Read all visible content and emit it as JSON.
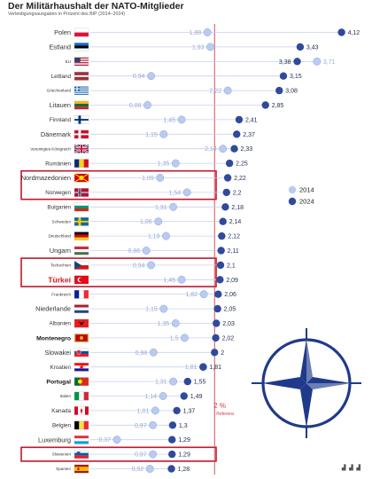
{
  "title": "Der Militärhaushalt der NATO-Mitglieder",
  "subtitle": "Verteidigungsausgaben in Prozent des BIP (2014–2024)",
  "footer_mark": "▟ ▟ ▟",
  "chart_data": {
    "type": "dot-plot",
    "title": "Der Militärhaushalt der NATO-Mitglieder",
    "subtitle": "Verteidigungsausgaben in Prozent des BIP (2014–2024)",
    "xlim": [
      0,
      4.2
    ],
    "reference": {
      "value": 2.0,
      "label": "2 %",
      "sublabel": "Referenz"
    },
    "legend": {
      "placement": "right",
      "entries": [
        {
          "name": "2014",
          "color": "#b9cbf0"
        },
        {
          "name": "2024",
          "color": "#2f4a9c"
        }
      ]
    },
    "highlight_groups": [
      [
        10,
        11
      ],
      [
        16,
        17
      ],
      [
        29,
        29
      ]
    ],
    "countries": [
      {
        "name": "Polen",
        "v2014": 1.88,
        "l2014": "1,88",
        "v2024": 4.12,
        "l2024": "4,12",
        "flag": "pl"
      },
      {
        "name": "Estland",
        "v2014": 1.93,
        "l2014": "1,93",
        "v2024": 3.43,
        "l2024": "3,43",
        "flag": "ee"
      },
      {
        "name": "EU",
        "v2014": 3.71,
        "l2014": "3,71",
        "v2024": 3.38,
        "l2024": "3,38",
        "flag": "us"
      },
      {
        "name": "Lettland",
        "v2014": 0.94,
        "l2014": "0,94",
        "v2024": 3.15,
        "l2024": "3,15",
        "flag": "lv"
      },
      {
        "name": "Griechenland",
        "v2014": 2.22,
        "l2014": "2,22",
        "v2024": 3.08,
        "l2024": "3,08",
        "flag": "gr"
      },
      {
        "name": "Litauen",
        "v2014": 0.88,
        "l2014": "0,88",
        "v2024": 2.85,
        "l2024": "2,85",
        "flag": "lt"
      },
      {
        "name": "Finnland",
        "v2014": 1.45,
        "l2014": "1,45",
        "v2024": 2.41,
        "l2024": "2,41",
        "flag": "fi"
      },
      {
        "name": "Dänemark",
        "v2014": 1.15,
        "l2014": "1,15",
        "v2024": 2.37,
        "l2024": "2,37",
        "flag": "dk"
      },
      {
        "name": "Vereinigtes Königreich",
        "v2014": 2.14,
        "l2014": "2,14",
        "v2024": 2.33,
        "l2024": "2,33",
        "flag": "gb"
      },
      {
        "name": "Rumänien",
        "v2014": 1.35,
        "l2014": "1,35",
        "v2024": 2.25,
        "l2024": "2,25",
        "flag": "ro"
      },
      {
        "name": "Nordmazedonien",
        "v2014": 1.09,
        "l2014": "1,09",
        "v2024": 2.22,
        "l2024": "2,22",
        "flag": "mk"
      },
      {
        "name": "Norwegen",
        "v2014": 1.54,
        "l2014": "1,54",
        "v2024": 2.2,
        "l2024": "2,2",
        "flag": "no"
      },
      {
        "name": "Bulgarien",
        "v2014": 1.31,
        "l2014": "1,31",
        "v2024": 2.18,
        "l2024": "2,18",
        "flag": "bg"
      },
      {
        "name": "Schweden",
        "v2014": 1.06,
        "l2014": "1,06",
        "v2024": 2.14,
        "l2024": "2,14",
        "flag": "se"
      },
      {
        "name": "Deutschland",
        "v2014": 1.19,
        "l2014": "1,19",
        "v2024": 2.12,
        "l2024": "2,12",
        "flag": "de"
      },
      {
        "name": "Ungarn",
        "v2014": 0.86,
        "l2014": "0,86",
        "v2024": 2.11,
        "l2024": "2,11",
        "flag": "hu"
      },
      {
        "name": "Tschechien",
        "v2014": 0.94,
        "l2014": "0,94",
        "v2024": 2.1,
        "l2024": "2,1",
        "flag": "cz"
      },
      {
        "name": "Türkei",
        "v2014": 1.45,
        "l2014": "1,45",
        "v2024": 2.09,
        "l2024": "2,09",
        "flag": "tr"
      },
      {
        "name": "Frankreich",
        "v2014": 1.82,
        "l2014": "1,82",
        "v2024": 2.06,
        "l2024": "2,06",
        "flag": "fr"
      },
      {
        "name": "Niederlande",
        "v2014": 1.15,
        "l2014": "1,15",
        "v2024": 2.05,
        "l2024": "2,05",
        "flag": "nl"
      },
      {
        "name": "Albanien",
        "v2014": 1.35,
        "l2014": "1,35",
        "v2024": 2.03,
        "l2024": "2,03",
        "flag": "al"
      },
      {
        "name": "Montenegro",
        "v2014": 1.5,
        "l2014": "1,5",
        "v2024": 2.02,
        "l2024": "2,02",
        "flag": "me"
      },
      {
        "name": "Slowakei",
        "v2014": 0.98,
        "l2014": "0,98",
        "v2024": 2.0,
        "l2024": "2",
        "flag": "sk"
      },
      {
        "name": "Kroatien",
        "v2014": 1.81,
        "l2014": "1,81",
        "v2024": 1.81,
        "l2024": "1,81",
        "flag": "hr"
      },
      {
        "name": "Portugal",
        "v2014": 1.31,
        "l2014": "1,31",
        "v2024": 1.55,
        "l2024": "1,55",
        "flag": "pt"
      },
      {
        "name": "Italien",
        "v2014": 1.14,
        "l2014": "1,14",
        "v2024": 1.49,
        "l2024": "1,49",
        "flag": "it"
      },
      {
        "name": "Kanada",
        "v2014": 1.01,
        "l2014": "1,01",
        "v2024": 1.37,
        "l2024": "1,37",
        "flag": "ca"
      },
      {
        "name": "Belgien",
        "v2014": 0.97,
        "l2014": "0,97",
        "v2024": 1.3,
        "l2024": "1,3",
        "flag": "be"
      },
      {
        "name": "Luxemburg",
        "v2014": 0.37,
        "l2014": "0,37",
        "v2024": 1.29,
        "l2024": "1,29",
        "flag": "lu"
      },
      {
        "name": "Slowenien",
        "v2014": 0.97,
        "l2014": "0,97",
        "v2024": 1.29,
        "l2024": "1,29",
        "flag": "si"
      },
      {
        "name": "Spanien",
        "v2014": 0.92,
        "l2014": "0,92",
        "v2024": 1.28,
        "l2024": "1,28",
        "flag": "es"
      }
    ]
  },
  "name_styles": {
    "small": [
      "EU",
      "Griechenland",
      "Vereinigtes Königreich",
      "Schweden",
      "Deutschland",
      "Tschechien",
      "Frankreich",
      "Italien",
      "Slowenien",
      "Spanien"
    ],
    "large": [
      "Polen",
      "Estland",
      "Litauen",
      "Dänemark",
      "Nordmazedonien",
      "Ungarn",
      "Niederlande",
      "Slowakei",
      "Luxemburg"
    ],
    "bold": [
      "Montenegro",
      "Portugal"
    ],
    "red": [
      "Türkei"
    ]
  },
  "colors": {
    "dot2014": "#b9cbf0",
    "dot2014_stroke": "#8ea4d8",
    "dot2024": "#2f4a9c",
    "line": "#c8d2e8",
    "reference": "#d03b4e",
    "highlight": "#c0182b",
    "label2014": "#9aaad6",
    "label2024": "#1e2a55",
    "nato": "#1f3a8a"
  },
  "icons": [
    "nato-compass-rose-icon"
  ]
}
